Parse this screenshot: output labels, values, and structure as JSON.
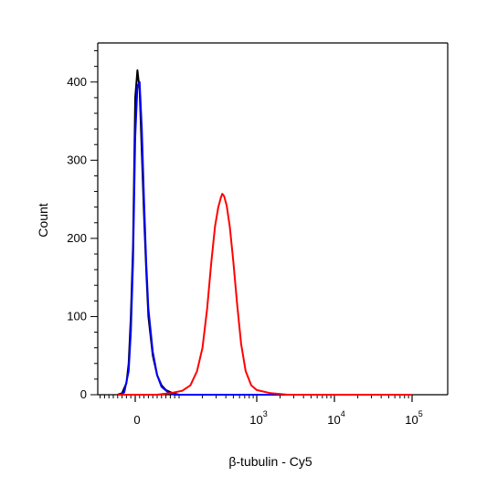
{
  "chart_data": {
    "type": "line",
    "title": "",
    "xlabel": "β-tubulin - Cy5",
    "ylabel": "Count",
    "x_scale": "biexponential",
    "ylim": [
      0,
      450
    ],
    "x_ticks": [
      {
        "value": 0,
        "base": "0",
        "exp": ""
      },
      {
        "value": 1000,
        "base": "10",
        "exp": "3"
      },
      {
        "value": 10000,
        "base": "10",
        "exp": "4"
      },
      {
        "value": 100000,
        "base": "10",
        "exp": "5"
      }
    ],
    "y_ticks": [
      {
        "value": 0,
        "label": "0"
      },
      {
        "value": 100,
        "label": "100"
      },
      {
        "value": 200,
        "label": "200"
      },
      {
        "value": 300,
        "label": "300"
      },
      {
        "value": 400,
        "label": "400"
      }
    ],
    "grid": false,
    "legend": "none",
    "series": [
      {
        "color": "#000000",
        "points": [
          [
            -40,
            0
          ],
          [
            -30,
            2
          ],
          [
            -20,
            15
          ],
          [
            -15,
            40
          ],
          [
            -10,
            100
          ],
          [
            -5,
            190
          ],
          [
            -2,
            300
          ],
          [
            0,
            380
          ],
          [
            5,
            415
          ],
          [
            10,
            390
          ],
          [
            15,
            310
          ],
          [
            20,
            230
          ],
          [
            25,
            160
          ],
          [
            30,
            100
          ],
          [
            40,
            50
          ],
          [
            50,
            25
          ],
          [
            60,
            12
          ],
          [
            70,
            6
          ],
          [
            85,
            2
          ],
          [
            100,
            0
          ],
          [
            1000,
            0
          ],
          [
            100000,
            0
          ]
        ]
      },
      {
        "color": "#0000ff",
        "points": [
          [
            -35,
            0
          ],
          [
            -25,
            3
          ],
          [
            -15,
            30
          ],
          [
            -10,
            80
          ],
          [
            -5,
            170
          ],
          [
            0,
            330
          ],
          [
            5,
            395
          ],
          [
            10,
            400
          ],
          [
            15,
            340
          ],
          [
            20,
            250
          ],
          [
            25,
            170
          ],
          [
            30,
            110
          ],
          [
            40,
            55
          ],
          [
            50,
            25
          ],
          [
            60,
            10
          ],
          [
            75,
            3
          ],
          [
            90,
            0
          ],
          [
            1000,
            0
          ],
          [
            100000,
            0
          ]
        ]
      },
      {
        "color": "#ff0000",
        "points": [
          [
            -40,
            0
          ],
          [
            50,
            0
          ],
          [
            80,
            2
          ],
          [
            110,
            5
          ],
          [
            140,
            12
          ],
          [
            170,
            30
          ],
          [
            200,
            60
          ],
          [
            230,
            110
          ],
          [
            260,
            170
          ],
          [
            290,
            215
          ],
          [
            320,
            240
          ],
          [
            345,
            252
          ],
          [
            360,
            257
          ],
          [
            380,
            254
          ],
          [
            410,
            242
          ],
          [
            450,
            215
          ],
          [
            500,
            170
          ],
          [
            560,
            115
          ],
          [
            630,
            65
          ],
          [
            720,
            30
          ],
          [
            850,
            12
          ],
          [
            1000,
            6
          ],
          [
            1500,
            2
          ],
          [
            2500,
            0
          ],
          [
            100000,
            0
          ]
        ]
      }
    ]
  }
}
